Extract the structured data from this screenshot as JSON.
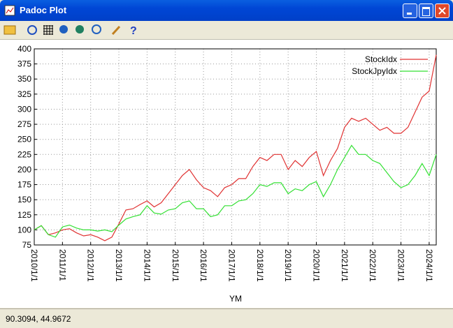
{
  "window": {
    "title": "Padoc Plot",
    "status": "90.3094,  44.9672"
  },
  "chart_data": {
    "type": "line",
    "x_label": "YM",
    "x": [
      "2010/1/1",
      "2010/4/1",
      "2010/7/1",
      "2010/10/1",
      "2011/1/1",
      "2011/4/1",
      "2011/7/1",
      "2011/10/1",
      "2012/1/1",
      "2012/4/1",
      "2012/7/1",
      "2012/10/1",
      "2013/1/1",
      "2013/4/1",
      "2013/7/1",
      "2013/10/1",
      "2014/1/1",
      "2014/4/1",
      "2014/7/1",
      "2014/10/1",
      "2015/1/1",
      "2015/4/1",
      "2015/7/1",
      "2015/10/1",
      "2016/1/1",
      "2016/4/1",
      "2016/7/1",
      "2016/10/1",
      "2017/1/1",
      "2017/4/1",
      "2017/7/1",
      "2017/10/1",
      "2018/1/1",
      "2018/4/1",
      "2018/7/1",
      "2018/10/1",
      "2019/1/1",
      "2019/4/1",
      "2019/7/1",
      "2019/10/1",
      "2020/1/1",
      "2020/4/1",
      "2020/7/1",
      "2020/10/1",
      "2021/1/1",
      "2021/4/1",
      "2021/7/1",
      "2021/10/1",
      "2022/1/1",
      "2022/4/1",
      "2022/7/1",
      "2022/10/1",
      "2023/1/1",
      "2023/4/1",
      "2023/7/1",
      "2023/10/1",
      "2024/1/1",
      "2024/4/1"
    ],
    "series": [
      {
        "name": "StockIdx",
        "color": "#e03232",
        "values": [
          100,
          107,
          92,
          95,
          100,
          102,
          95,
          90,
          92,
          88,
          82,
          88,
          110,
          133,
          135,
          142,
          148,
          138,
          145,
          160,
          175,
          190,
          200,
          183,
          170,
          165,
          155,
          170,
          175,
          185,
          185,
          205,
          220,
          215,
          225,
          225,
          200,
          215,
          205,
          220,
          230,
          190,
          215,
          235,
          270,
          285,
          280,
          285,
          275,
          265,
          270,
          260,
          260,
          270,
          295,
          320,
          330,
          390
        ]
      },
      {
        "name": "StockJpyIdx",
        "color": "#33e033",
        "values": [
          100,
          107,
          92,
          88,
          105,
          108,
          103,
          100,
          100,
          98,
          100,
          97,
          108,
          118,
          122,
          125,
          140,
          128,
          126,
          133,
          135,
          145,
          148,
          135,
          135,
          122,
          125,
          140,
          140,
          148,
          150,
          160,
          175,
          172,
          178,
          178,
          160,
          168,
          165,
          175,
          180,
          155,
          175,
          200,
          220,
          240,
          225,
          225,
          215,
          210,
          195,
          180,
          170,
          175,
          190,
          210,
          190,
          225
        ]
      }
    ],
    "xlim": [
      "2010/1/1",
      "2024/4/1"
    ],
    "xticks": [
      "2010/1/1",
      "2011/1/1",
      "2012/1/1",
      "2013/1/1",
      "2014/1/1",
      "2015/1/1",
      "2016/1/1",
      "2017/1/1",
      "2018/1/1",
      "2019/1/1",
      "2020/1/1",
      "2021/1/1",
      "2022/1/1",
      "2023/1/1",
      "2024/1/1"
    ],
    "ylim": [
      75,
      400
    ],
    "yticks": [
      75,
      100,
      125,
      150,
      175,
      200,
      225,
      250,
      275,
      300,
      325,
      350,
      375,
      400
    ],
    "grid": true,
    "legend": "top-right"
  }
}
